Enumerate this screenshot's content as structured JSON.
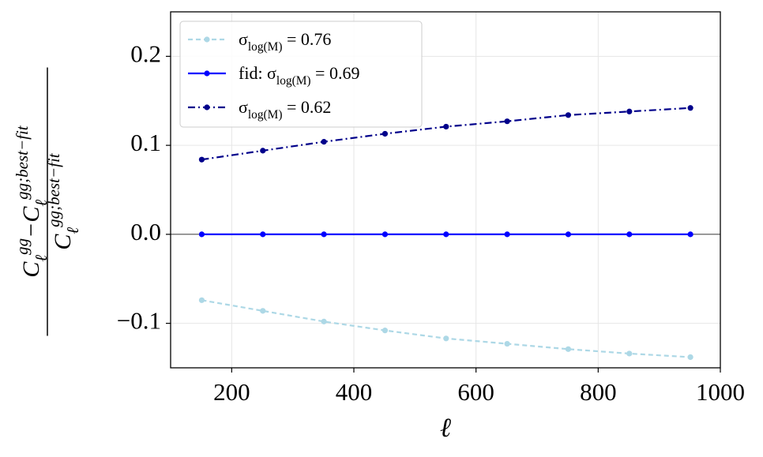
{
  "chart_data": {
    "type": "line",
    "xlabel": "ℓ",
    "ylabel": {
      "numerator": "C_ℓ^{gg}−C_ℓ^{gg;best−fit}",
      "denominator": "C_ℓ^{gg;best−fit}"
    },
    "x": [
      151,
      251,
      351,
      451,
      551,
      651,
      751,
      851,
      951
    ],
    "series": [
      {
        "name": "σ_{log(M)} = 0.76",
        "color": "#add8e6",
        "linestyle": "dashed",
        "values": [
          -0.074,
          -0.086,
          -0.098,
          -0.108,
          -0.117,
          -0.123,
          -0.129,
          -0.134,
          -0.138
        ]
      },
      {
        "name": "fid: σ_{log(M)} = 0.69",
        "color": "#0000ff",
        "linestyle": "solid",
        "values": [
          0,
          0,
          0,
          0,
          0,
          0,
          0,
          0,
          0
        ]
      },
      {
        "name": "σ_{log(M)} = 0.62",
        "color": "#00008b",
        "linestyle": "dashdot",
        "values": [
          0.084,
          0.094,
          0.104,
          0.113,
          0.121,
          0.127,
          0.134,
          0.138,
          0.142
        ]
      }
    ],
    "xlim": [
      100,
      1000
    ],
    "xticks": [
      200,
      400,
      600,
      800,
      1000
    ],
    "ylim": [
      -0.15,
      0.25
    ],
    "yticks": [
      {
        "value": -0.1,
        "label": "−0.1"
      },
      {
        "value": 0,
        "label": "0.0"
      },
      0.1,
      0.2
    ],
    "grid": true,
    "legend": "upper left"
  }
}
